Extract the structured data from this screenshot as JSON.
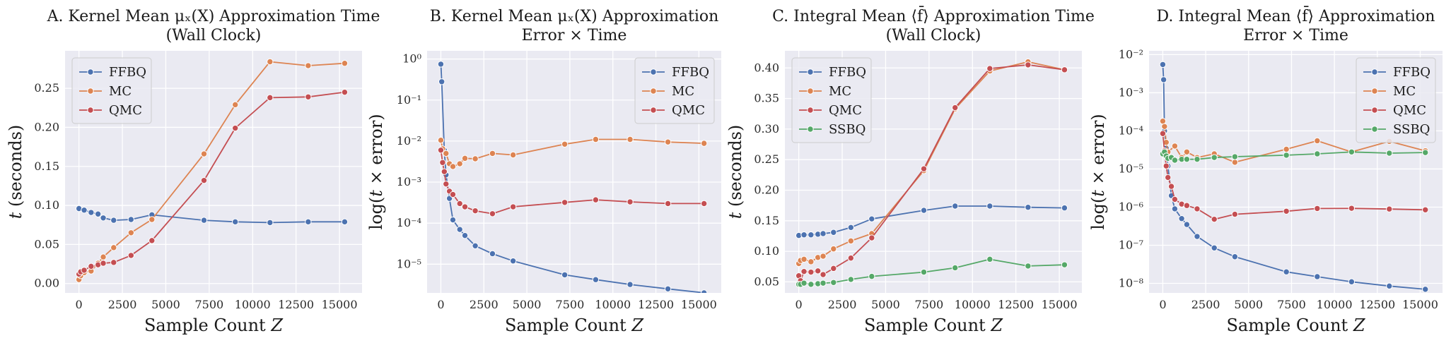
{
  "colors": {
    "FFBQ": "#4c72b0",
    "MC": "#dd8452",
    "QMC": "#c44e52",
    "SSBQ": "#55a868",
    "panel_bg": "#eaeaf2",
    "grid": "#ffffff"
  },
  "chart_data": [
    {
      "type": "line",
      "title_lines": [
        "A. Kernel Mean μₓ(X) Approximation Time",
        "(Wall Clock)"
      ],
      "xlabel": "Sample Count Z",
      "ylabel": "t (seconds)",
      "yscale": "linear",
      "xlim": [
        -800,
        16300
      ],
      "ylim": [
        -0.012,
        0.298
      ],
      "xticks": [
        0,
        2500,
        5000,
        7500,
        10000,
        12500,
        15000
      ],
      "xtick_labels": [
        "0",
        "2500",
        "5000",
        "7500",
        "10000",
        "12500",
        "15000"
      ],
      "yticks": [
        0,
        0.05,
        0.1,
        0.15,
        0.2,
        0.25
      ],
      "ytick_labels": [
        "0.00",
        "0.05",
        "0.10",
        "0.15",
        "0.20",
        "0.25"
      ],
      "legend_position": "top-left",
      "series": [
        {
          "name": "FFBQ",
          "x": [
            0,
            300,
            700,
            1100,
            1400,
            2000,
            3000,
            4200,
            7200,
            9000,
            11000,
            13200,
            15300
          ],
          "y": [
            0.096,
            0.094,
            0.091,
            0.089,
            0.084,
            0.081,
            0.082,
            0.088,
            0.081,
            0.079,
            0.078,
            0.079,
            0.079
          ]
        },
        {
          "name": "MC",
          "x": [
            0,
            100,
            300,
            700,
            1100,
            1400,
            2000,
            3000,
            4200,
            7200,
            9000,
            11000,
            13200,
            15300
          ],
          "y": [
            0.005,
            0.01,
            0.014,
            0.016,
            0.026,
            0.034,
            0.046,
            0.065,
            0.082,
            0.166,
            0.229,
            0.284,
            0.279,
            0.282
          ]
        },
        {
          "name": "QMC",
          "x": [
            0,
            100,
            300,
            700,
            1100,
            1400,
            2000,
            3000,
            4200,
            7200,
            9000,
            11000,
            13200,
            15300
          ],
          "y": [
            0.012,
            0.015,
            0.017,
            0.022,
            0.024,
            0.026,
            0.027,
            0.036,
            0.055,
            0.132,
            0.199,
            0.238,
            0.239,
            0.245
          ]
        }
      ]
    },
    {
      "type": "line",
      "title_lines": [
        "B. Kernel Mean μₓ(X) Approximation",
        "Error × Time"
      ],
      "xlabel": "Sample Count Z",
      "ylabel": "log(t × error)",
      "yscale": "log",
      "xlim": [
        -800,
        16300
      ],
      "ylim_log10": [
        -5.7,
        0.2
      ],
      "xticks": [
        0,
        2500,
        5000,
        7500,
        10000,
        12500,
        15000
      ],
      "xtick_labels": [
        "0",
        "2500",
        "5000",
        "7500",
        "10000",
        "12500",
        "15000"
      ],
      "yticks": [
        1e-05,
        0.0001,
        0.001,
        0.01,
        0.1,
        1
      ],
      "ytick_labels": [
        "10⁻⁵",
        "10⁻⁴",
        "10⁻³",
        "10⁻²",
        "10⁻¹",
        "10⁰"
      ],
      "legend_position": "top-right",
      "series": [
        {
          "name": "FFBQ",
          "x": [
            0,
            50,
            200,
            300,
            500,
            700,
            1100,
            1400,
            2000,
            3000,
            4200,
            7200,
            9000,
            11000,
            13200,
            15300
          ],
          "y": [
            0.75,
            0.28,
            0.006,
            0.0015,
            0.0004,
            0.00012,
            7e-05,
            5e-05,
            2.8e-05,
            1.8e-05,
            1.2e-05,
            5.5e-06,
            4.2e-06,
            3.2e-06,
            2.5e-06,
            2e-06
          ]
        },
        {
          "name": "MC",
          "x": [
            0,
            100,
            300,
            500,
            700,
            1100,
            1400,
            2000,
            3000,
            4200,
            7200,
            9000,
            11000,
            13200,
            15300
          ],
          "y": [
            0.0105,
            0.0065,
            0.005,
            0.0028,
            0.0024,
            0.0028,
            0.0038,
            0.0037,
            0.005,
            0.0046,
            0.0084,
            0.011,
            0.011,
            0.0095,
            0.0088
          ]
        },
        {
          "name": "QMC",
          "x": [
            0,
            100,
            200,
            300,
            500,
            700,
            1100,
            1400,
            2000,
            3000,
            4200,
            7200,
            9000,
            11000,
            13200,
            15300
          ],
          "y": [
            0.006,
            0.003,
            0.0018,
            0.0009,
            0.0006,
            0.0005,
            0.0003,
            0.00025,
            0.0002,
            0.00017,
            0.00025,
            0.00032,
            0.00037,
            0.00033,
            0.0003,
            0.0003
          ]
        }
      ]
    },
    {
      "type": "line",
      "title_lines": [
        "C. Integral Mean ⟨f̄⟩ Approximation Time",
        "(Wall Clock)"
      ],
      "xlabel": "Sample Count Z",
      "ylabel": "t (seconds)",
      "yscale": "linear",
      "xlim": [
        -800,
        16300
      ],
      "ylim": [
        0.032,
        0.428
      ],
      "xticks": [
        0,
        2500,
        5000,
        7500,
        10000,
        12500,
        15000
      ],
      "xtick_labels": [
        "0",
        "2500",
        "5000",
        "7500",
        "10000",
        "12500",
        "15000"
      ],
      "yticks": [
        0.05,
        0.1,
        0.15,
        0.2,
        0.25,
        0.3,
        0.35,
        0.4
      ],
      "ytick_labels": [
        "0.05",
        "0.10",
        "0.15",
        "0.20",
        "0.25",
        "0.30",
        "0.35",
        "0.40"
      ],
      "legend_position": "top-left",
      "series": [
        {
          "name": "FFBQ",
          "x": [
            0,
            300,
            700,
            1100,
            1400,
            2000,
            3000,
            4200,
            7200,
            9000,
            11000,
            13200,
            15300
          ],
          "y": [
            0.126,
            0.127,
            0.127,
            0.128,
            0.129,
            0.131,
            0.139,
            0.153,
            0.167,
            0.174,
            0.174,
            0.172,
            0.171
          ]
        },
        {
          "name": "MC",
          "x": [
            0,
            100,
            300,
            700,
            1100,
            1400,
            2000,
            3000,
            4200,
            7200,
            9000,
            11000,
            13200,
            15300
          ],
          "y": [
            0.08,
            0.085,
            0.087,
            0.083,
            0.09,
            0.092,
            0.104,
            0.117,
            0.129,
            0.232,
            0.333,
            0.395,
            0.41,
            0.397
          ]
        },
        {
          "name": "QMC",
          "x": [
            0,
            100,
            300,
            700,
            1100,
            1400,
            2000,
            3000,
            4200,
            7200,
            9000,
            11000,
            13200,
            15300
          ],
          "y": [
            0.06,
            0.052,
            0.067,
            0.066,
            0.068,
            0.062,
            0.072,
            0.089,
            0.122,
            0.235,
            0.335,
            0.399,
            0.405,
            0.397
          ]
        },
        {
          "name": "SSBQ",
          "x": [
            0,
            100,
            300,
            700,
            1100,
            1400,
            2000,
            3000,
            4200,
            7200,
            9000,
            11000,
            13200,
            15300
          ],
          "y": [
            0.046,
            0.046,
            0.048,
            0.046,
            0.047,
            0.048,
            0.049,
            0.054,
            0.059,
            0.066,
            0.073,
            0.087,
            0.076,
            0.078
          ]
        }
      ]
    },
    {
      "type": "line",
      "title_lines": [
        "D. Integral Mean ⟨f̄⟩ Approximation",
        "Error × Time"
      ],
      "xlabel": "Sample Count Z",
      "ylabel": "log(t × error)",
      "yscale": "log",
      "xlim": [
        -800,
        16300
      ],
      "ylim_log10": [
        -8.25,
        -1.9
      ],
      "xticks": [
        0,
        2500,
        5000,
        7500,
        10000,
        12500,
        15000
      ],
      "xtick_labels": [
        "0",
        "2500",
        "5000",
        "7500",
        "10000",
        "12500",
        "15000"
      ],
      "yticks": [
        1e-08,
        1e-07,
        1e-06,
        1e-05,
        0.0001,
        0.001,
        0.01
      ],
      "ytick_labels": [
        "10⁻⁸",
        "10⁻⁷",
        "10⁻⁶",
        "10⁻⁵",
        "10⁻⁴",
        "10⁻³",
        "10⁻²"
      ],
      "legend_position": "top-right",
      "series": [
        {
          "name": "FFBQ",
          "x": [
            0,
            50,
            100,
            200,
            300,
            500,
            700,
            1100,
            1400,
            2000,
            3000,
            4200,
            7200,
            9000,
            11000,
            13200,
            15300
          ],
          "y": [
            0.0055,
            0.0022,
            0.0001,
            3.5e-05,
            1.2e-05,
            2e-06,
            9e-07,
            5e-07,
            3.5e-07,
            1.7e-07,
            8.5e-08,
            5e-08,
            2e-08,
            1.5e-08,
            1.1e-08,
            8.5e-09,
            7e-09
          ]
        },
        {
          "name": "MC",
          "x": [
            0,
            100,
            200,
            300,
            700,
            1100,
            1400,
            2000,
            3000,
            4200,
            7200,
            9000,
            11000,
            13200,
            15300
          ],
          "y": [
            0.00018,
            0.00013,
            5e-05,
            2.8e-05,
            4e-05,
            2e-05,
            2.8e-05,
            2e-05,
            2.5e-05,
            1.5e-05,
            3.3e-05,
            5.5e-05,
            2.8e-05,
            5.3e-05,
            3e-05
          ]
        },
        {
          "name": "QMC",
          "x": [
            0,
            100,
            200,
            300,
            500,
            700,
            1100,
            1400,
            2000,
            3000,
            4200,
            7200,
            9000,
            11000,
            13200,
            15300
          ],
          "y": [
            8.5e-05,
            3e-05,
            1.2e-05,
            6e-06,
            3.5e-06,
            1.6e-06,
            1.2e-06,
            1.1e-06,
            9e-07,
            4.8e-07,
            6.5e-07,
            7.8e-07,
            9.2e-07,
            9.3e-07,
            8.9e-07,
            8.5e-07
          ]
        },
        {
          "name": "SSBQ",
          "x": [
            0,
            100,
            200,
            300,
            500,
            700,
            1100,
            1400,
            2000,
            3000,
            4200,
            7200,
            9000,
            11000,
            13200,
            15300
          ],
          "y": [
            2.5e-05,
            2.8e-05,
            2.2e-05,
            1.9e-05,
            2e-05,
            1.7e-05,
            1.8e-05,
            1.8e-05,
            1.8e-05,
            2e-05,
            2.1e-05,
            2.3e-05,
            2.5e-05,
            2.8e-05,
            2.6e-05,
            2.7e-05
          ]
        }
      ]
    }
  ]
}
